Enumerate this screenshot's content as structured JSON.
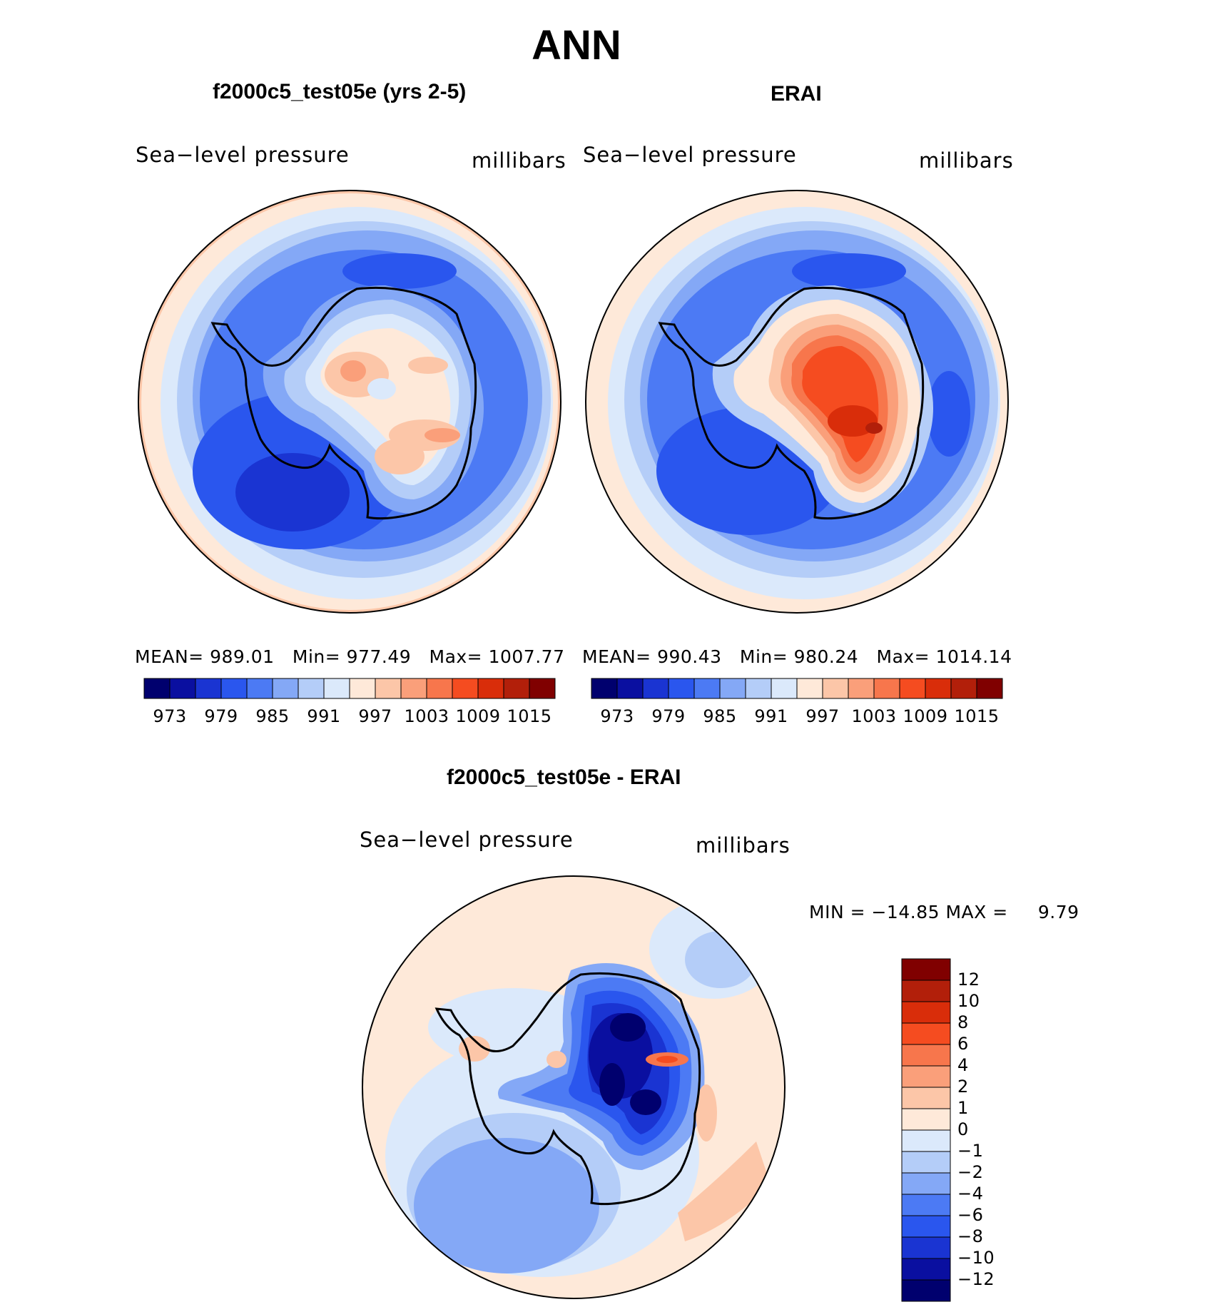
{
  "title": "ANN",
  "colors": {
    "abs_scale": [
      "#00006e",
      "#0a0fa0",
      "#1a34d2",
      "#2a56ee",
      "#4c7af4",
      "#84a8f6",
      "#b4cdf8",
      "#dbe9fb",
      "#fee9d9",
      "#fcc6a8",
      "#fa9f7a",
      "#f7764c",
      "#f54c20",
      "#d92d0a",
      "#b21f0a",
      "#800000"
    ],
    "diff_scale": [
      "#00006e",
      "#0a0fa0",
      "#1a34d2",
      "#2a56ee",
      "#4c7af4",
      "#84a8f6",
      "#b4cdf8",
      "#dbe9fb",
      "#fee9d9",
      "#fcc6a8",
      "#fa9f7a",
      "#f7764c",
      "#f54c20",
      "#d92d0a",
      "#b21f0a",
      "#800000"
    ]
  },
  "panels": {
    "test": {
      "title": "f2000c5_test05e (yrs 2-5)",
      "variable": "Sea−level pressure",
      "units": "millibars",
      "stats": {
        "mean_label": "MEAN=",
        "mean": "989.01",
        "min_label": "Min=",
        "min": "977.49",
        "max_label": "Max=",
        "max": "1007.77"
      }
    },
    "ref": {
      "title": "ERAI",
      "variable": "Sea−level pressure",
      "units": "millibars",
      "stats": {
        "mean_label": "MEAN=",
        "mean": "990.43",
        "min_label": "Min=",
        "min": "980.24",
        "max_label": "Max=",
        "max": "1014.14"
      }
    },
    "diff": {
      "title": "f2000c5_test05e - ERAI",
      "variable": "Sea−level pressure",
      "units": "millibars",
      "minmax": "MIN = −14.85 MAX =     9.79"
    }
  },
  "abs_colorbar_ticks": [
    "973",
    "979",
    "985",
    "991",
    "997",
    "1003",
    "1009",
    "1015"
  ],
  "diff_colorbar_ticks": [
    "12",
    "10",
    "8",
    "6",
    "4",
    "2",
    "1",
    "0",
    "−1",
    "−2",
    "−4",
    "−6",
    "−8",
    "−10",
    "−12"
  ],
  "chart_data": [
    {
      "type": "heatmap",
      "title": "f2000c5_test05e (yrs 2-5)",
      "field": "Sea-level pressure",
      "units": "millibars",
      "projection": "south polar stereographic",
      "levels": [
        973,
        976,
        979,
        982,
        985,
        988,
        991,
        994,
        997,
        1000,
        1003,
        1006,
        1009,
        1012,
        1015
      ],
      "mean": 989.01,
      "min": 977.49,
      "max": 1007.77
    },
    {
      "type": "heatmap",
      "title": "ERAI",
      "field": "Sea-level pressure",
      "units": "millibars",
      "projection": "south polar stereographic",
      "levels": [
        973,
        976,
        979,
        982,
        985,
        988,
        991,
        994,
        997,
        1000,
        1003,
        1006,
        1009,
        1012,
        1015
      ],
      "mean": 990.43,
      "min": 980.24,
      "max": 1014.14
    },
    {
      "type": "heatmap",
      "title": "f2000c5_test05e - ERAI",
      "field": "Sea-level pressure",
      "units": "millibars",
      "projection": "south polar stereographic",
      "levels": [
        -12,
        -10,
        -8,
        -6,
        -4,
        -2,
        -1,
        0,
        1,
        2,
        4,
        6,
        8,
        10,
        12
      ],
      "min": -14.85,
      "max": 9.79
    }
  ]
}
